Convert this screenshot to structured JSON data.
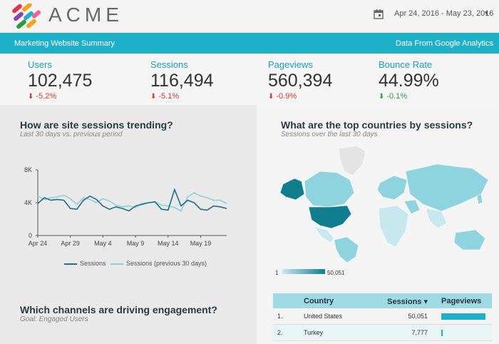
{
  "header": {
    "brand": "ACME",
    "date_range": "Apr 24, 2016 - May 23, 2016",
    "date_caret": "▾",
    "calendar_icon": "calendar-icon",
    "logo_colors": [
      "#e6324b",
      "#f7a21b",
      "#1fb0c9",
      "#2e9a3f",
      "#8e44ad",
      "#f06292"
    ]
  },
  "subheader": {
    "title": "Marketing Website Summary",
    "source": "Data From Google Analytics"
  },
  "kpis": [
    {
      "label": "Users",
      "value": "102,475",
      "delta": "-5.2%",
      "direction": "down"
    },
    {
      "label": "Sessions",
      "value": "116,494",
      "delta": "-5.1%",
      "direction": "down"
    },
    {
      "label": "Pageviews",
      "value": "560,394",
      "delta": "-0.9%",
      "direction": "down"
    },
    {
      "label": "Bounce Rate",
      "value": "44.99%",
      "delta": "-0.1%",
      "direction": "up"
    }
  ],
  "trend_panel": {
    "title": "How are site sessions trending?",
    "subtitle": "Last 30 days vs. previous period"
  },
  "channels_panel": {
    "title": "Which channels are driving engagement?",
    "subtitle": "Goal: Engaged Users"
  },
  "countries_panel": {
    "title": "What are the top countries by sessions?",
    "subtitle": "Sessions over the last 30 days",
    "scale_min": "1",
    "scale_max": "50,051"
  },
  "chart_data": {
    "type": "line",
    "x": [
      "Apr 24",
      "Apr 25",
      "Apr 26",
      "Apr 27",
      "Apr 28",
      "Apr 29",
      "Apr 30",
      "May 1",
      "May 2",
      "May 3",
      "May 4",
      "May 5",
      "May 6",
      "May 7",
      "May 8",
      "May 9",
      "May 10",
      "May 11",
      "May 12",
      "May 13",
      "May 14",
      "May 15",
      "May 16",
      "May 17",
      "May 18",
      "May 19",
      "May 20",
      "May 21",
      "May 22",
      "May 23"
    ],
    "x_ticks": [
      "Apr 24",
      "Apr 29",
      "May 4",
      "May 9",
      "May 14",
      "May 19"
    ],
    "y_ticks": [
      "0",
      "4K",
      "8K"
    ],
    "ylim": [
      0,
      8000
    ],
    "series": [
      {
        "name": "Sessions",
        "color": "#1d6f8c",
        "values": [
          3900,
          4600,
          4300,
          4400,
          4300,
          3300,
          3200,
          4300,
          4800,
          4400,
          3600,
          3200,
          3500,
          3300,
          3000,
          3600,
          3800,
          4000,
          4100,
          3200,
          3100,
          5600,
          3600,
          4300,
          4000,
          3200,
          3100,
          3600,
          3500,
          3300
        ]
      },
      {
        "name": "Sessions (previous 30 days)",
        "color": "#8ecfdc",
        "values": [
          4800,
          4400,
          4600,
          4700,
          4900,
          4500,
          3800,
          4600,
          4400,
          4000,
          4500,
          4200,
          3700,
          3500,
          3600,
          3400,
          3900,
          4000,
          4100,
          3700,
          3600,
          3400,
          3000,
          4700,
          5200,
          4800,
          4600,
          4300,
          4300,
          3900
        ]
      }
    ],
    "legend_position": "bottom"
  },
  "countries_table": {
    "headers": {
      "country": "Country",
      "sessions": "Sessions ▾",
      "pageviews": "Pageviews"
    },
    "rows": [
      {
        "idx": "1.",
        "country": "United States",
        "sessions": "50,051",
        "pageviews_fraction": 1.0
      },
      {
        "idx": "2.",
        "country": "Turkey",
        "sessions": "7,777",
        "pageviews_fraction": 0.04
      }
    ]
  },
  "colors": {
    "accent": "#1fb0c9",
    "map_dark": "#0f7f8f",
    "map_mid": "#8fd3df",
    "map_light": "#c6e8ee",
    "map_empty": "#e4e4e4"
  }
}
